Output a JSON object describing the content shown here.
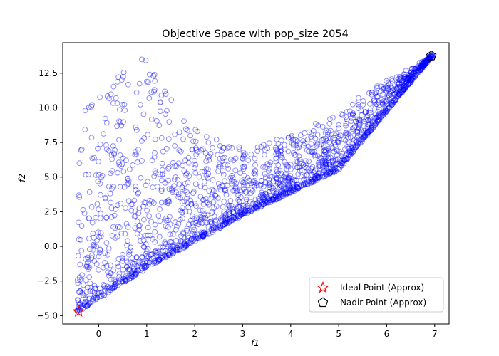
{
  "chart_data": {
    "type": "scatter",
    "title": "Objective Space with pop_size 2054",
    "xlabel": "f1",
    "ylabel": "f2",
    "xlim": [
      -0.75,
      7.3
    ],
    "ylim": [
      -5.6,
      14.7
    ],
    "xticks": [
      0,
      1,
      2,
      3,
      4,
      5,
      6,
      7
    ],
    "xtick_labels": [
      "0",
      "1",
      "2",
      "3",
      "4",
      "5",
      "6",
      "7"
    ],
    "yticks": [
      -5.0,
      -2.5,
      0.0,
      2.5,
      5.0,
      7.5,
      10.0,
      12.5
    ],
    "ytick_labels": [
      "−5.0",
      "−2.5",
      "0.0",
      "2.5",
      "5.0",
      "7.5",
      "10.0",
      "12.5"
    ],
    "grid": false,
    "legend_position": "lower-right",
    "population": {
      "count": 2054,
      "marker": "hollow-circle",
      "color": "#0000ff",
      "opacity": 0.45,
      "x_range": [
        -0.45,
        6.95
      ],
      "lower_front": [
        [
          -0.45,
          -4.7
        ],
        [
          1.0,
          -1.5
        ],
        [
          3.0,
          2.3
        ],
        [
          5.0,
          5.6
        ],
        [
          6.95,
          13.8
        ]
      ],
      "upper_envelope": [
        [
          -0.45,
          -4.4
        ],
        [
          -0.4,
          8.5
        ],
        [
          -0.2,
          11.5
        ],
        [
          0.3,
          12.0
        ],
        [
          0.7,
          13.3
        ],
        [
          1.0,
          13.7
        ],
        [
          1.4,
          11.5
        ],
        [
          1.8,
          9.0
        ],
        [
          2.3,
          8.0
        ],
        [
          3.0,
          7.0
        ],
        [
          4.0,
          8.0
        ],
        [
          5.0,
          9.5
        ],
        [
          5.5,
          11.0
        ],
        [
          6.0,
          12.0
        ],
        [
          6.5,
          12.8
        ],
        [
          6.95,
          13.8
        ]
      ]
    },
    "series": [
      {
        "name": "Ideal Point (Approx)",
        "marker": "star",
        "color": "#ff0000",
        "x": [
          -0.42
        ],
        "y": [
          -4.7
        ]
      },
      {
        "name": "Nadir Point (Approx)",
        "marker": "pentagon",
        "color": "#000000",
        "x": [
          6.93
        ],
        "y": [
          13.75
        ]
      }
    ]
  }
}
